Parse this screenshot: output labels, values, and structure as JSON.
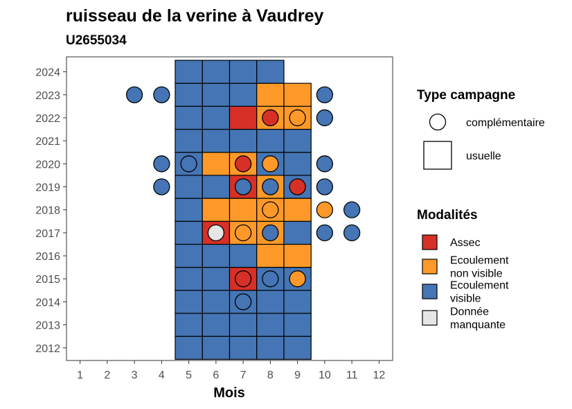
{
  "chart_data": {
    "type": "heatmap",
    "title": "ruisseau de la verine à Vaudrey",
    "subtitle": "U2655034",
    "xlabel": "Mois",
    "ylabel": "",
    "x_ticks": [
      "1",
      "2",
      "3",
      "4",
      "5",
      "6",
      "7",
      "8",
      "9",
      "10",
      "11",
      "12"
    ],
    "y_ticks": [
      "2012",
      "2013",
      "2014",
      "2015",
      "2016",
      "2017",
      "2018",
      "2019",
      "2020",
      "2021",
      "2022",
      "2023",
      "2024"
    ],
    "xlim": [
      0.5,
      12.5
    ],
    "ylim": [
      2011.45,
      2024.65
    ],
    "grid": false,
    "colors": {
      "assec": "#d73027",
      "ecoulement_non_visible": "#fe9929",
      "ecoulement_visible": "#4575b4",
      "donnee_manquante": "#e6e6e6"
    },
    "usuelle_campaign": [
      {
        "year": 2012,
        "values": {
          "5": "ecoulement_visible",
          "6": "ecoulement_visible",
          "7": "ecoulement_visible",
          "8": "ecoulement_visible",
          "9": "ecoulement_visible"
        }
      },
      {
        "year": 2013,
        "values": {
          "5": "ecoulement_visible",
          "6": "ecoulement_visible",
          "7": "ecoulement_visible",
          "8": "ecoulement_visible",
          "9": "ecoulement_visible"
        }
      },
      {
        "year": 2014,
        "values": {
          "5": "ecoulement_visible",
          "6": "ecoulement_visible",
          "7": "ecoulement_visible",
          "8": "ecoulement_visible",
          "9": "ecoulement_visible"
        }
      },
      {
        "year": 2015,
        "values": {
          "5": "ecoulement_visible",
          "6": "ecoulement_visible",
          "7": "assec",
          "8": "ecoulement_visible",
          "9": "ecoulement_visible"
        }
      },
      {
        "year": 2016,
        "values": {
          "5": "ecoulement_visible",
          "6": "ecoulement_visible",
          "7": "ecoulement_visible",
          "8": "ecoulement_non_visible",
          "9": "ecoulement_non_visible"
        }
      },
      {
        "year": 2017,
        "values": {
          "5": "ecoulement_visible",
          "6": "assec",
          "7": "ecoulement_non_visible",
          "8": "ecoulement_non_visible",
          "9": "ecoulement_visible"
        }
      },
      {
        "year": 2018,
        "values": {
          "5": "ecoulement_visible",
          "6": "ecoulement_non_visible",
          "7": "ecoulement_non_visible",
          "8": "ecoulement_non_visible",
          "9": "ecoulement_non_visible"
        }
      },
      {
        "year": 2019,
        "values": {
          "5": "ecoulement_visible",
          "6": "ecoulement_visible",
          "7": "assec",
          "8": "ecoulement_non_visible",
          "9": "ecoulement_visible"
        }
      },
      {
        "year": 2020,
        "values": {
          "5": "ecoulement_visible",
          "6": "ecoulement_non_visible",
          "7": "ecoulement_non_visible",
          "8": "ecoulement_visible",
          "9": "ecoulement_visible"
        }
      },
      {
        "year": 2021,
        "values": {
          "5": "ecoulement_visible",
          "6": "ecoulement_visible",
          "7": "ecoulement_visible",
          "8": "ecoulement_visible",
          "9": "ecoulement_visible"
        }
      },
      {
        "year": 2022,
        "values": {
          "5": "ecoulement_visible",
          "6": "ecoulement_visible",
          "7": "assec",
          "8": "ecoulement_non_visible",
          "9": "ecoulement_non_visible"
        }
      },
      {
        "year": 2023,
        "values": {
          "5": "ecoulement_visible",
          "6": "ecoulement_visible",
          "7": "ecoulement_visible",
          "8": "ecoulement_non_visible",
          "9": "ecoulement_non_visible"
        }
      },
      {
        "year": 2024,
        "values": {
          "5": "ecoulement_visible",
          "6": "ecoulement_visible",
          "7": "ecoulement_visible",
          "8": "ecoulement_visible"
        }
      }
    ],
    "complementaire_campaign": [
      {
        "year": 2023,
        "month": 3,
        "modalite": "ecoulement_visible"
      },
      {
        "year": 2023,
        "month": 4,
        "modalite": "ecoulement_visible"
      },
      {
        "year": 2023,
        "month": 10,
        "modalite": "ecoulement_visible"
      },
      {
        "year": 2022,
        "month": 8,
        "modalite": "assec"
      },
      {
        "year": 2022,
        "month": 9,
        "modalite": "ecoulement_non_visible"
      },
      {
        "year": 2022,
        "month": 10,
        "modalite": "ecoulement_visible"
      },
      {
        "year": 2020,
        "month": 4,
        "modalite": "ecoulement_visible"
      },
      {
        "year": 2020,
        "month": 5,
        "modalite": "ecoulement_visible"
      },
      {
        "year": 2020,
        "month": 7,
        "modalite": "assec"
      },
      {
        "year": 2020,
        "month": 8,
        "modalite": "ecoulement_non_visible"
      },
      {
        "year": 2020,
        "month": 10,
        "modalite": "ecoulement_visible"
      },
      {
        "year": 2019,
        "month": 4,
        "modalite": "ecoulement_visible"
      },
      {
        "year": 2019,
        "month": 7,
        "modalite": "ecoulement_visible"
      },
      {
        "year": 2019,
        "month": 8,
        "modalite": "ecoulement_visible"
      },
      {
        "year": 2019,
        "month": 9,
        "modalite": "assec"
      },
      {
        "year": 2019,
        "month": 10,
        "modalite": "ecoulement_visible"
      },
      {
        "year": 2018,
        "month": 8,
        "modalite": "ecoulement_non_visible"
      },
      {
        "year": 2018,
        "month": 10,
        "modalite": "ecoulement_non_visible"
      },
      {
        "year": 2018,
        "month": 11,
        "modalite": "ecoulement_visible"
      },
      {
        "year": 2017,
        "month": 6,
        "modalite": "donnee_manquante"
      },
      {
        "year": 2017,
        "month": 7,
        "modalite": "ecoulement_non_visible"
      },
      {
        "year": 2017,
        "month": 8,
        "modalite": "ecoulement_visible"
      },
      {
        "year": 2017,
        "month": 10,
        "modalite": "ecoulement_visible"
      },
      {
        "year": 2017,
        "month": 11,
        "modalite": "ecoulement_visible"
      },
      {
        "year": 2015,
        "month": 7,
        "modalite": "assec"
      },
      {
        "year": 2015,
        "month": 8,
        "modalite": "ecoulement_visible"
      },
      {
        "year": 2015,
        "month": 9,
        "modalite": "ecoulement_non_visible"
      },
      {
        "year": 2014,
        "month": 7,
        "modalite": "ecoulement_visible"
      }
    ],
    "legend_type": {
      "title": "Type campagne",
      "items": [
        {
          "key": "complementaire",
          "label": "complémentaire",
          "shape": "circle"
        },
        {
          "key": "usuelle",
          "label": "usuelle",
          "shape": "square"
        }
      ]
    },
    "legend_modalites": {
      "title": "Modalités",
      "items": [
        {
          "key": "assec",
          "lines": [
            "Assec"
          ]
        },
        {
          "key": "ecoulement_non_visible",
          "lines": [
            "Ecoulement",
            "non visible"
          ]
        },
        {
          "key": "ecoulement_visible",
          "lines": [
            "Ecoulement",
            "visible"
          ]
        },
        {
          "key": "donnee_manquante",
          "lines": [
            "Donnée",
            "manquante"
          ]
        }
      ]
    },
    "legend_position": "right"
  }
}
